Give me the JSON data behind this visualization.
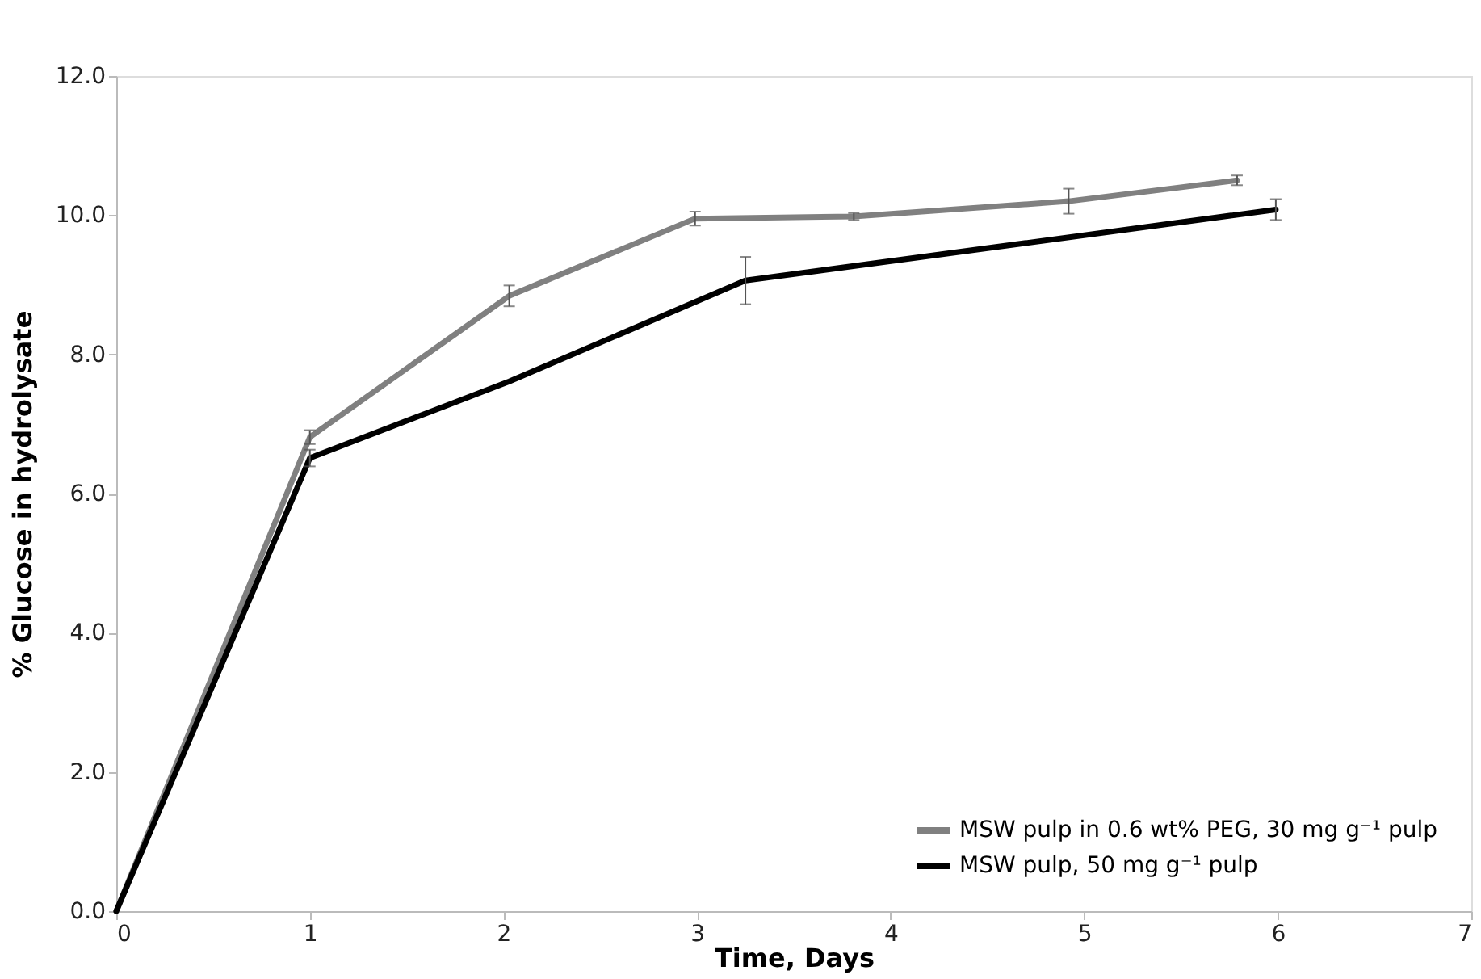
{
  "chart_data": {
    "type": "line",
    "xlabel": "Time, Days",
    "ylabel": "% Glucose in hydrolysate",
    "series": [
      {
        "name": "MSW pulp in 0.6 wt% PEG, 30 mg g⁻¹ pulp",
        "color": "#808080",
        "x": [
          0,
          1.0,
          2.03,
          2.99,
          3.81,
          4.92,
          5.79
        ],
        "values": [
          0,
          6.81,
          8.84,
          9.95,
          9.98,
          10.2,
          10.5
        ],
        "errors": [
          null,
          0.1,
          0.15,
          0.1,
          0.05,
          0.18,
          0.07
        ]
      },
      {
        "name": "MSW pulp, 50 mg g⁻¹ pulp",
        "color": "#000000",
        "x": [
          0,
          1.0,
          2.03,
          3.25,
          5.99
        ],
        "values": [
          0,
          6.51,
          7.61,
          9.06,
          10.08
        ],
        "errors": [
          null,
          0.12,
          null,
          0.34,
          0.15
        ]
      }
    ],
    "xlim": [
      0,
      7
    ],
    "xticks": [
      0,
      1,
      2,
      3,
      4,
      5,
      6,
      7
    ],
    "ylim": [
      0,
      12
    ],
    "yticks": [
      {
        "value": 0,
        "label": "0.0"
      },
      {
        "value": 2,
        "label": "2.0"
      },
      {
        "value": 4,
        "label": "4.0"
      },
      {
        "value": 6,
        "label": "6.0"
      },
      {
        "value": 8,
        "label": "8.0"
      },
      {
        "value": 10,
        "label": "10.0"
      },
      {
        "value": 12,
        "label": "12.0"
      }
    ],
    "grid": false,
    "legend": "bottom right",
    "marker": "none",
    "line_style": "solid"
  }
}
